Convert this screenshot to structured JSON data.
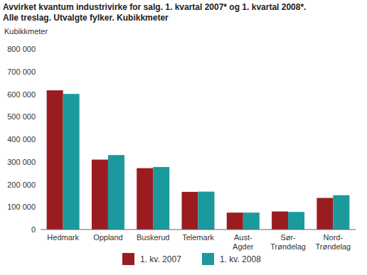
{
  "chart_data": {
    "type": "bar",
    "title": "Avvirket kvantum industrivirke for salg. 1. kvartal 2007* og 1. kvartal 2008*.",
    "subtitle": "Alle treslag. Utvalgte fylker. Kubikkmeter",
    "y_label": "Kubikkmeter",
    "categories": [
      "Hedmark",
      "Oppland",
      "Buskerud",
      "Telemark",
      "Aust-Agder",
      "Sør-Trøndelag",
      "Nord-Trøndelag"
    ],
    "series": [
      {
        "name": "1. kv. 2007",
        "color": "#9b1c20",
        "values": [
          617000,
          310000,
          272000,
          167000,
          75000,
          80000,
          140000
        ]
      },
      {
        "name": "1. kv. 2008",
        "color": "#1a9a9c",
        "values": [
          601000,
          330000,
          277000,
          168000,
          75000,
          78000,
          152000
        ]
      }
    ],
    "ylim": [
      0,
      800000
    ],
    "yticks": [
      0,
      {
        "value": 100000,
        "label": "100 000"
      },
      {
        "value": 200000,
        "label": "200 000"
      },
      {
        "value": 300000,
        "label": "300 000"
      },
      {
        "value": 400000,
        "label": "400 000"
      },
      {
        "value": 500000,
        "label": "500 000"
      },
      {
        "value": 600000,
        "label": "600 000"
      },
      {
        "value": 700000,
        "label": "700 000"
      },
      {
        "value": 800000,
        "label": "800 000"
      }
    ],
    "grid": false,
    "legend": "bottom"
  }
}
